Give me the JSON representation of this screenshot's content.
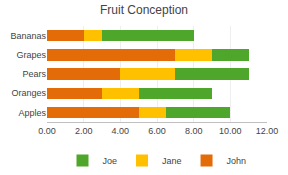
{
  "chart_data": {
    "type": "bar",
    "orientation": "horizontal",
    "stacked": true,
    "title": "Fruit Conception",
    "categories": [
      "Apples",
      "Oranges",
      "Pears",
      "Grapes",
      "Bananas"
    ],
    "series": [
      {
        "name": "John",
        "color": "#E36C09",
        "values": [
          5.0,
          3.0,
          4.0,
          7.0,
          2.0
        ]
      },
      {
        "name": "Jane",
        "color": "#FFC000",
        "values": [
          1.5,
          2.0,
          3.0,
          2.0,
          1.0
        ]
      },
      {
        "name": "Joe",
        "color": "#4EA72A",
        "values": [
          3.5,
          4.0,
          4.0,
          2.0,
          5.0
        ]
      }
    ],
    "xlim": [
      0,
      12
    ],
    "xticks": [
      {
        "value": 0,
        "label": "0.00"
      },
      {
        "value": 2,
        "label": "2.00"
      },
      {
        "value": 4,
        "label": "4.00"
      },
      {
        "value": 6,
        "label": "6.00"
      },
      {
        "value": 8,
        "label": "8.00"
      },
      {
        "value": 10,
        "label": "10.00"
      },
      {
        "value": 12,
        "label": "12.00"
      }
    ],
    "grid": true,
    "legend": "bottom"
  }
}
